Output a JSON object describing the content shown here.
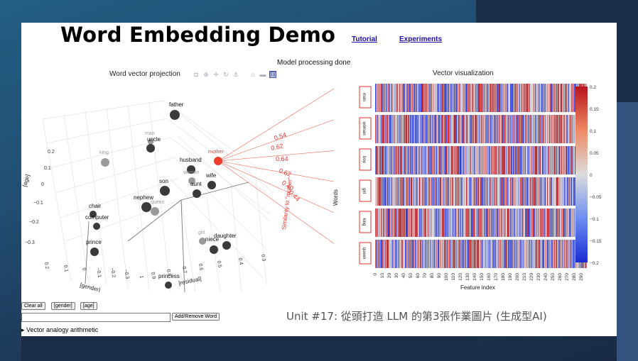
{
  "header": {
    "title": "Word Embedding Demo",
    "links": [
      "Tutorial",
      "Experiments"
    ],
    "status": "Model processing done"
  },
  "projection": {
    "title": "Word vector projection",
    "axes": {
      "age": "[age]",
      "gender": "[gender]",
      "residual": "[residual]"
    },
    "age_ticks": [
      "0.2",
      "0.1",
      "0",
      "−0.1",
      "−0.2",
      "−0.3"
    ],
    "gender_ticks": [
      "0.2",
      "0.1",
      "0",
      "−0.1",
      "−0.2",
      "−0.3"
    ],
    "residual_ticks": [
      "1",
      "0.9",
      "0.8",
      "0.7",
      "0.6",
      "0.5",
      "0.4",
      "0.3"
    ],
    "words": [
      {
        "label": "father",
        "color": "#3a3a3a"
      },
      {
        "label": "man",
        "color": "#9a9a9a"
      },
      {
        "label": "uncle",
        "color": "#3a3a3a"
      },
      {
        "label": "king",
        "color": "#9a9a9a"
      },
      {
        "label": "mother",
        "color": "#ef3b2c"
      },
      {
        "label": "husband",
        "color": "#3a3a3a"
      },
      {
        "label": "woman",
        "color": "#9a9a9a"
      },
      {
        "label": "son",
        "color": "#3a3a3a"
      },
      {
        "label": "aunt",
        "color": "#3a3a3a"
      },
      {
        "label": "wife",
        "color": "#3a3a3a"
      },
      {
        "label": "nephew",
        "color": "#3a3a3a"
      },
      {
        "label": "queen",
        "color": "#9a9a9a"
      },
      {
        "label": "chair",
        "color": "#3a3a3a"
      },
      {
        "label": "computer",
        "color": "#3a3a3a"
      },
      {
        "label": "girl",
        "color": "#9a9a9a"
      },
      {
        "label": "daughter",
        "color": "#3a3a3a"
      },
      {
        "label": "niece",
        "color": "#3a3a3a"
      },
      {
        "label": "prince",
        "color": "#3a3a3a"
      },
      {
        "label": "princess",
        "color": "#3a3a3a"
      }
    ],
    "similarity_label": "Similarity to \"mother\"",
    "similarities": [
      "0.54",
      "0.62",
      "0.64",
      "0.62",
      "0.40",
      "0.44"
    ]
  },
  "heatmap": {
    "title": "Vector visualization",
    "ylabel": "Words",
    "xlabel": "Feature index",
    "rows": [
      "man",
      "woman",
      "boy",
      "girl",
      "king",
      "queen"
    ],
    "xticks": [
      "0",
      "10",
      "20",
      "30",
      "40",
      "50",
      "60",
      "70",
      "80",
      "90",
      "100",
      "110",
      "120",
      "130",
      "140",
      "150",
      "160",
      "170",
      "180",
      "190",
      "200",
      "210",
      "220",
      "230",
      "240",
      "250",
      "260",
      "270",
      "280",
      "290"
    ],
    "colorbar_ticks": [
      "0.2",
      "0.15",
      "0.1",
      "0.05",
      "0",
      "−0.05",
      "−0.1",
      "−0.15",
      "−0.2"
    ],
    "colors": {
      "low": "#1a2bd4",
      "mid": "#dcdcdc",
      "high": "#b8141c"
    }
  },
  "controls": {
    "clear_all": "Clear all",
    "gender": "[gender]",
    "age": "[age]",
    "add_remove": "Add/Remove Word",
    "input_value": "",
    "analogy": "▸ Vector analogy arithmetic"
  },
  "caption": "Unit #17: 從頭打造 LLM 的第3張作業圖片 (生成型AI)",
  "toolbar_icons": [
    "camera-icon",
    "zoom-icon",
    "pan-icon",
    "orbit-icon",
    "turntable-icon",
    "home-icon",
    "hover-icon",
    "plotly-logo-icon"
  ]
}
